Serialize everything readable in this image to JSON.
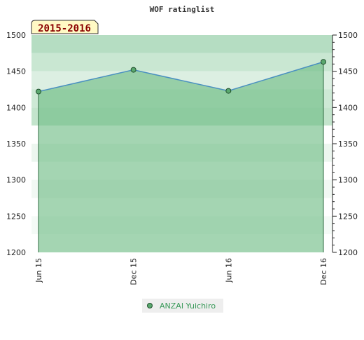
{
  "chart_data": {
    "type": "area",
    "title": "WOF ratinglist",
    "period_label": "2015-2016",
    "categories": [
      "Jun 15",
      "Dec 15",
      "Jun 16",
      "Dec 16"
    ],
    "series": [
      {
        "name": "ANZAI Yuichiro",
        "values": [
          1422,
          1452,
          1423,
          1463
        ]
      }
    ],
    "ylim": [
      1200,
      1500
    ],
    "yticks": [
      1200,
      1250,
      1300,
      1350,
      1400,
      1450,
      1500
    ],
    "ytick_labels": [
      "1200",
      "1250",
      "1300",
      "1350",
      "1400",
      "1450",
      "1500"
    ],
    "grid": false,
    "legend_position": "bottom-center",
    "colors": {
      "line": "#4a90c0",
      "fill": "#6cbb82",
      "marker": "#5aa86e",
      "marker_stroke": "#1e4d2b",
      "period_bg": "#fff9c4",
      "period_text": "#8b0000",
      "legend_bg": "#eeeeee",
      "legend_text": "#3a9a5a"
    }
  }
}
